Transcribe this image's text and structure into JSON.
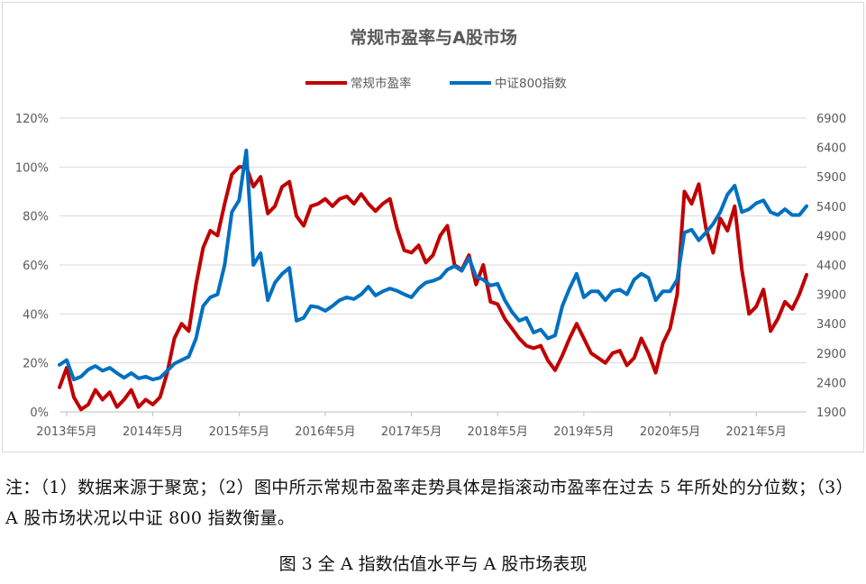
{
  "chart_data": {
    "type": "line",
    "title": "常规市盈率与A股市场",
    "legend_position": "top-center",
    "grid": true,
    "y_left": {
      "ticks": [
        "0%",
        "20%",
        "40%",
        "60%",
        "80%",
        "100%",
        "120%"
      ],
      "range": [
        0,
        120
      ],
      "unit": "%"
    },
    "y_right": {
      "ticks": [
        "1900",
        "2400",
        "2900",
        "3400",
        "3900",
        "4400",
        "4900",
        "5400",
        "5900",
        "6400",
        "6900"
      ],
      "range": [
        1900,
        6900
      ]
    },
    "x_ticks": [
      "2013年5月",
      "2014年5月",
      "2015年5月",
      "2016年5月",
      "2017年5月",
      "2018年5月",
      "2019年5月",
      "2020年5月",
      "2021年5月"
    ],
    "x_range": [
      "2013-04",
      "2021-12"
    ],
    "series": [
      {
        "name": "常规市盈率",
        "axis": "left",
        "color": "#c00000",
        "points": [
          [
            "2013-04",
            10
          ],
          [
            "2013-05",
            18
          ],
          [
            "2013-06",
            6
          ],
          [
            "2013-07",
            1
          ],
          [
            "2013-08",
            3
          ],
          [
            "2013-09",
            9
          ],
          [
            "2013-10",
            5
          ],
          [
            "2013-11",
            8
          ],
          [
            "2013-12",
            2
          ],
          [
            "2014-01",
            5
          ],
          [
            "2014-02",
            9
          ],
          [
            "2014-03",
            2
          ],
          [
            "2014-04",
            5
          ],
          [
            "2014-05",
            3
          ],
          [
            "2014-06",
            6
          ],
          [
            "2014-07",
            16
          ],
          [
            "2014-08",
            30
          ],
          [
            "2014-09",
            36
          ],
          [
            "2014-10",
            33
          ],
          [
            "2014-11",
            52
          ],
          [
            "2014-12",
            67
          ],
          [
            "2015-01",
            74
          ],
          [
            "2015-02",
            72
          ],
          [
            "2015-03",
            85
          ],
          [
            "2015-04",
            97
          ],
          [
            "2015-05",
            100
          ],
          [
            "2015-06",
            100
          ],
          [
            "2015-07",
            92
          ],
          [
            "2015-08",
            96
          ],
          [
            "2015-09",
            81
          ],
          [
            "2015-10",
            84
          ],
          [
            "2015-11",
            92
          ],
          [
            "2015-12",
            94
          ],
          [
            "2016-01",
            80
          ],
          [
            "2016-02",
            76
          ],
          [
            "2016-03",
            84
          ],
          [
            "2016-04",
            85
          ],
          [
            "2016-05",
            87
          ],
          [
            "2016-06",
            84
          ],
          [
            "2016-07",
            87
          ],
          [
            "2016-08",
            88
          ],
          [
            "2016-09",
            85
          ],
          [
            "2016-10",
            89
          ],
          [
            "2016-11",
            85
          ],
          [
            "2016-12",
            82
          ],
          [
            "2017-01",
            85
          ],
          [
            "2017-02",
            87
          ],
          [
            "2017-03",
            75
          ],
          [
            "2017-04",
            66
          ],
          [
            "2017-05",
            65
          ],
          [
            "2017-06",
            68
          ],
          [
            "2017-07",
            61
          ],
          [
            "2017-08",
            64
          ],
          [
            "2017-09",
            72
          ],
          [
            "2017-10",
            76
          ],
          [
            "2017-11",
            60
          ],
          [
            "2017-12",
            58
          ],
          [
            "2018-01",
            64
          ],
          [
            "2018-02",
            52
          ],
          [
            "2018-03",
            60
          ],
          [
            "2018-04",
            45
          ],
          [
            "2018-05",
            44
          ],
          [
            "2018-06",
            38
          ],
          [
            "2018-07",
            34
          ],
          [
            "2018-08",
            30
          ],
          [
            "2018-09",
            27
          ],
          [
            "2018-10",
            26
          ],
          [
            "2018-11",
            27
          ],
          [
            "2018-12",
            21
          ],
          [
            "2019-01",
            17
          ],
          [
            "2019-02",
            23
          ],
          [
            "2019-03",
            30
          ],
          [
            "2019-04",
            36
          ],
          [
            "2019-05",
            30
          ],
          [
            "2019-06",
            24
          ],
          [
            "2019-07",
            22
          ],
          [
            "2019-08",
            20
          ],
          [
            "2019-09",
            24
          ],
          [
            "2019-10",
            25
          ],
          [
            "2019-11",
            19
          ],
          [
            "2019-12",
            22
          ],
          [
            "2020-01",
            30
          ],
          [
            "2020-02",
            24
          ],
          [
            "2020-03",
            16
          ],
          [
            "2020-04",
            28
          ],
          [
            "2020-05",
            34
          ],
          [
            "2020-06",
            48
          ],
          [
            "2020-07",
            90
          ],
          [
            "2020-08",
            85
          ],
          [
            "2020-09",
            93
          ],
          [
            "2020-10",
            75
          ],
          [
            "2020-11",
            65
          ],
          [
            "2020-12",
            79
          ],
          [
            "2021-01",
            74
          ],
          [
            "2021-02",
            84
          ],
          [
            "2021-03",
            58
          ],
          [
            "2021-04",
            40
          ],
          [
            "2021-05",
            43
          ],
          [
            "2021-06",
            50
          ],
          [
            "2021-07",
            33
          ],
          [
            "2021-08",
            38
          ],
          [
            "2021-09",
            45
          ],
          [
            "2021-10",
            42
          ],
          [
            "2021-11",
            48
          ],
          [
            "2021-12",
            56
          ]
        ]
      },
      {
        "name": "中证800指数",
        "axis": "right",
        "color": "#0070c0",
        "points": [
          [
            "2013-04",
            2700
          ],
          [
            "2013-05",
            2780
          ],
          [
            "2013-06",
            2450
          ],
          [
            "2013-07",
            2500
          ],
          [
            "2013-08",
            2620
          ],
          [
            "2013-09",
            2680
          ],
          [
            "2013-10",
            2600
          ],
          [
            "2013-11",
            2650
          ],
          [
            "2013-12",
            2560
          ],
          [
            "2014-01",
            2480
          ],
          [
            "2014-02",
            2560
          ],
          [
            "2014-03",
            2470
          ],
          [
            "2014-04",
            2500
          ],
          [
            "2014-05",
            2450
          ],
          [
            "2014-06",
            2480
          ],
          [
            "2014-07",
            2600
          ],
          [
            "2014-08",
            2720
          ],
          [
            "2014-09",
            2780
          ],
          [
            "2014-10",
            2840
          ],
          [
            "2014-11",
            3150
          ],
          [
            "2014-12",
            3700
          ],
          [
            "2015-01",
            3850
          ],
          [
            "2015-02",
            3900
          ],
          [
            "2015-03",
            4400
          ],
          [
            "2015-04",
            5300
          ],
          [
            "2015-05",
            5500
          ],
          [
            "2015-06",
            6350
          ],
          [
            "2015-07",
            4400
          ],
          [
            "2015-08",
            4600
          ],
          [
            "2015-09",
            3800
          ],
          [
            "2015-10",
            4100
          ],
          [
            "2015-11",
            4250
          ],
          [
            "2015-12",
            4350
          ],
          [
            "2016-01",
            3450
          ],
          [
            "2016-02",
            3500
          ],
          [
            "2016-03",
            3700
          ],
          [
            "2016-04",
            3680
          ],
          [
            "2016-05",
            3620
          ],
          [
            "2016-06",
            3700
          ],
          [
            "2016-07",
            3800
          ],
          [
            "2016-08",
            3850
          ],
          [
            "2016-09",
            3820
          ],
          [
            "2016-10",
            3900
          ],
          [
            "2016-11",
            4030
          ],
          [
            "2016-12",
            3880
          ],
          [
            "2017-01",
            3950
          ],
          [
            "2017-02",
            4000
          ],
          [
            "2017-03",
            3960
          ],
          [
            "2017-04",
            3900
          ],
          [
            "2017-05",
            3850
          ],
          [
            "2017-06",
            4000
          ],
          [
            "2017-07",
            4100
          ],
          [
            "2017-08",
            4130
          ],
          [
            "2017-09",
            4180
          ],
          [
            "2017-10",
            4320
          ],
          [
            "2017-11",
            4380
          ],
          [
            "2017-12",
            4300
          ],
          [
            "2018-01",
            4520
          ],
          [
            "2018-02",
            4200
          ],
          [
            "2018-03",
            4150
          ],
          [
            "2018-04",
            4050
          ],
          [
            "2018-05",
            4080
          ],
          [
            "2018-06",
            3800
          ],
          [
            "2018-07",
            3600
          ],
          [
            "2018-08",
            3450
          ],
          [
            "2018-09",
            3500
          ],
          [
            "2018-10",
            3250
          ],
          [
            "2018-11",
            3300
          ],
          [
            "2018-12",
            3150
          ],
          [
            "2019-01",
            3200
          ],
          [
            "2019-02",
            3700
          ],
          [
            "2019-03",
            4000
          ],
          [
            "2019-04",
            4250
          ],
          [
            "2019-05",
            3850
          ],
          [
            "2019-06",
            3950
          ],
          [
            "2019-07",
            3950
          ],
          [
            "2019-08",
            3800
          ],
          [
            "2019-09",
            3950
          ],
          [
            "2019-10",
            3980
          ],
          [
            "2019-11",
            3900
          ],
          [
            "2019-12",
            4150
          ],
          [
            "2020-01",
            4250
          ],
          [
            "2020-02",
            4180
          ],
          [
            "2020-03",
            3800
          ],
          [
            "2020-04",
            3950
          ],
          [
            "2020-05",
            3950
          ],
          [
            "2020-06",
            4150
          ],
          [
            "2020-07",
            4950
          ],
          [
            "2020-08",
            5000
          ],
          [
            "2020-09",
            4820
          ],
          [
            "2020-10",
            4950
          ],
          [
            "2020-11",
            5100
          ],
          [
            "2020-12",
            5300
          ],
          [
            "2021-01",
            5600
          ],
          [
            "2021-02",
            5750
          ],
          [
            "2021-03",
            5300
          ],
          [
            "2021-04",
            5350
          ],
          [
            "2021-05",
            5450
          ],
          [
            "2021-06",
            5500
          ],
          [
            "2021-07",
            5300
          ],
          [
            "2021-08",
            5250
          ],
          [
            "2021-09",
            5350
          ],
          [
            "2021-10",
            5250
          ],
          [
            "2021-11",
            5250
          ],
          [
            "2021-12",
            5400
          ]
        ]
      }
    ]
  },
  "note": "注：（1）数据来源于聚宽；（2）图中所示常规市盈率走势具体是指滚动市盈率在过去 5 年所处的分位数；（3）A 股市场状况以中证 800 指数衡量。",
  "caption": "图 3  全 A 指数估值水平与 A 股市场表现"
}
